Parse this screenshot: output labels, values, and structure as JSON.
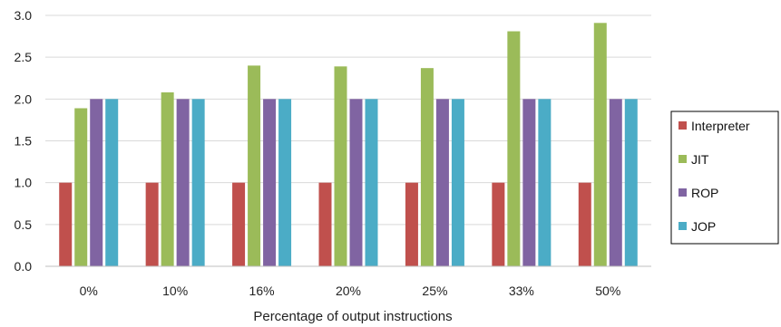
{
  "chart_data": {
    "type": "bar",
    "categories": [
      "0%",
      "10%",
      "16%",
      "20%",
      "25%",
      "33%",
      "50%"
    ],
    "series": [
      {
        "name": "Interpreter",
        "color": "#c0504d",
        "values": [
          1.0,
          1.0,
          1.0,
          1.0,
          1.0,
          1.0,
          1.0
        ]
      },
      {
        "name": "JIT",
        "color": "#9bbb59",
        "values": [
          1.89,
          2.08,
          2.4,
          2.39,
          2.37,
          2.81,
          2.91
        ]
      },
      {
        "name": "ROP",
        "color": "#8064a2",
        "values": [
          2.0,
          2.0,
          2.0,
          2.0,
          2.0,
          2.0,
          2.0
        ]
      },
      {
        "name": "JOP",
        "color": "#4bacc6",
        "values": [
          2.0,
          2.0,
          2.0,
          2.0,
          2.0,
          2.0,
          2.0
        ]
      }
    ],
    "ylim": [
      0,
      3.0
    ],
    "yticks": [
      "0.0",
      "0.5",
      "1.0",
      "1.5",
      "2.0",
      "2.5",
      "3.0"
    ],
    "xlabel": "Percentage of output instructions",
    "ylabel": "",
    "grid": true,
    "legend_position": "right"
  }
}
